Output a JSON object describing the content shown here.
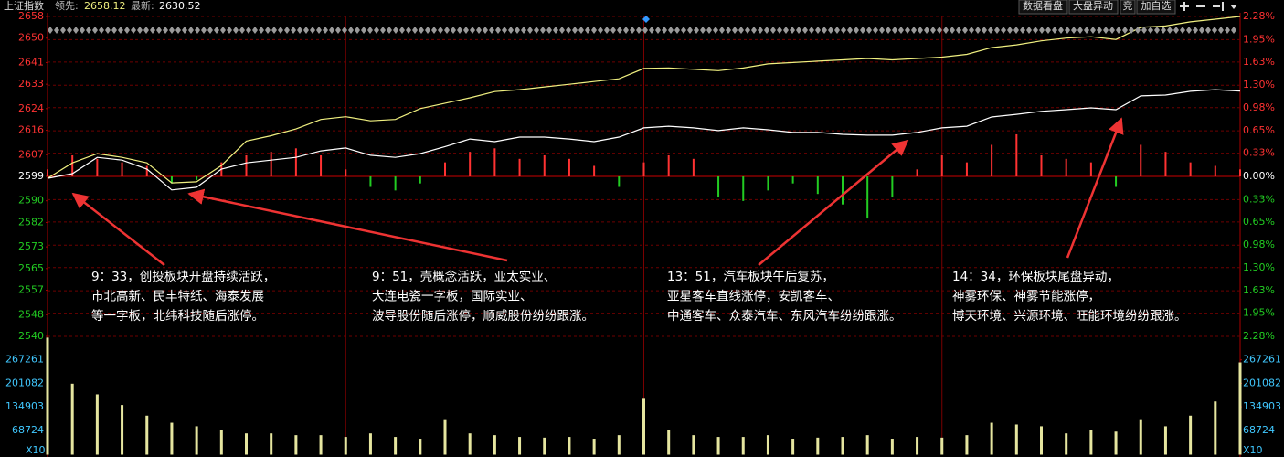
{
  "header": {
    "title": "上证指数",
    "lead_label": "领先:",
    "lead_value": "2658.12",
    "last_label": "最新:",
    "last_value": "2630.52"
  },
  "toolbar": {
    "buttons": [
      "数据看盘",
      "大盘异动",
      "竞",
      "加自选"
    ]
  },
  "annotations": [
    [
      "9：33，创投板块开盘持续活跃，",
      "市北高新、民丰特纸、海泰发展",
      "等一字板，北纬科技随后涨停。"
    ],
    [
      "9：51，壳概念活跃，亚太实业、",
      "大连电瓷一字板，国际实业、",
      "波导股份随后涨停，顺威股份纷纷跟涨。"
    ],
    [
      "13：51，汽车板块午后复苏，",
      "亚星客车直线涨停，安凯客车、",
      "中通客车、众泰汽车、东风汽车纷纷跟涨。"
    ],
    [
      "14：34，环保板块尾盘异动，",
      "神雾环保、神雾节能涨停，",
      "博天环境、兴源环境、旺能环境纷纷跟涨。"
    ]
  ],
  "chart_data": [
    {
      "type": "line",
      "x": [
        0,
        5,
        10,
        15,
        20,
        25,
        30,
        35,
        40,
        45,
        50,
        55,
        60,
        65,
        70,
        75,
        80,
        85,
        90,
        95,
        100,
        105,
        110,
        115,
        120,
        125,
        130,
        135,
        140,
        145,
        150,
        155,
        160,
        165,
        170,
        175,
        180,
        185,
        190,
        195,
        200,
        205,
        210,
        215,
        220,
        225,
        230,
        235,
        240
      ],
      "xlim": [
        0,
        240
      ],
      "ylim": [
        2540,
        2658
      ],
      "yticks": [
        2658,
        2650,
        2641,
        2633,
        2624,
        2616,
        2607,
        2599,
        2590,
        2582,
        2573,
        2565,
        2557,
        2548,
        2540
      ],
      "y2lim": [
        -2.28,
        2.28
      ],
      "y2ticks": [
        {
          "value": 2.28,
          "label": "2.28%"
        },
        {
          "value": 1.95,
          "label": "1.95%"
        },
        {
          "value": 1.63,
          "label": "1.63%"
        },
        {
          "value": 1.3,
          "label": "1.30%"
        },
        {
          "value": 0.98,
          "label": "0.98%"
        },
        {
          "value": 0.65,
          "label": "0.65%"
        },
        {
          "value": 0.33,
          "label": "0.33%"
        },
        {
          "value": 0,
          "label": "0.00%"
        },
        {
          "value": -0.33,
          "label": "0.33%"
        },
        {
          "value": -0.65,
          "label": "0.65%"
        },
        {
          "value": -0.98,
          "label": "0.98%"
        },
        {
          "value": -1.3,
          "label": "1.30%"
        },
        {
          "value": -1.63,
          "label": "1.63%"
        },
        {
          "value": -1.95,
          "label": "1.95%"
        },
        {
          "value": -2.28,
          "label": "2.28%"
        }
      ],
      "grid": true,
      "up_color": "#ff3232",
      "down_color": "#22cc22",
      "series": [
        {
          "type": "bar",
          "axis": "y2",
          "values": [
            0.1,
            0.3,
            0.25,
            0.2,
            0.15,
            -0.1,
            -0.05,
            0.2,
            0.3,
            0.35,
            0.4,
            0.3,
            0.1,
            -0.15,
            -0.2,
            -0.1,
            0.2,
            0.35,
            0.4,
            0.25,
            0.3,
            0.25,
            0.15,
            -0.15,
            0.2,
            0.3,
            0.25,
            -0.3,
            -0.35,
            -0.2,
            -0.1,
            -0.25,
            -0.4,
            -0.6,
            -0.3,
            0.1,
            0.3,
            0.2,
            0.45,
            0.6,
            0.3,
            0.25,
            0.2,
            -0.15,
            0.45,
            0.35,
            0.2,
            0.15,
            0.1
          ]
        },
        {
          "type": "line",
          "color": "#f0f080",
          "values": [
            2598.3,
            2604,
            2607.4,
            2606,
            2604,
            2596.6,
            2597,
            2603,
            2612,
            2614,
            2616.5,
            2620,
            2621,
            2619.5,
            2620,
            2624,
            2626,
            2628,
            2630.3,
            2631,
            2632,
            2633,
            2634,
            2635,
            2638.8,
            2639,
            2638.5,
            2638,
            2639,
            2640.5,
            2641,
            2641.5,
            2642,
            2642.5,
            2642,
            2642.5,
            2643,
            2644,
            2646.5,
            2647.5,
            2649,
            2650,
            2650.5,
            2649.5,
            2654,
            2654.5,
            2656,
            2657,
            2658
          ]
        },
        {
          "type": "line",
          "color": "#ffffff",
          "values": [
            2598.3,
            2600,
            2606,
            2605,
            2601.7,
            2594,
            2595,
            2601.7,
            2604,
            2605,
            2606,
            2608.4,
            2609.5,
            2606.8,
            2606,
            2607.4,
            2610,
            2612.8,
            2611.8,
            2613.5,
            2613.5,
            2612.8,
            2611.8,
            2613.5,
            2616.9,
            2617.5,
            2616.9,
            2615.9,
            2616.9,
            2616.2,
            2615.2,
            2615.2,
            2614.5,
            2614.2,
            2614.2,
            2615.2,
            2616.9,
            2617.5,
            2620.9,
            2621.9,
            2623,
            2623.6,
            2624.3,
            2623.6,
            2628.7,
            2629,
            2630.4,
            2631,
            2630.5
          ]
        }
      ]
    },
    {
      "type": "bar",
      "values": [
        330000,
        200000,
        170000,
        140000,
        110000,
        90000,
        80000,
        70000,
        60000,
        60000,
        55000,
        55000,
        50000,
        60000,
        50000,
        45000,
        100000,
        60000,
        55000,
        50000,
        48000,
        50000,
        45000,
        55000,
        160000,
        70000,
        55000,
        50000,
        50000,
        55000,
        45000,
        48000,
        50000,
        55000,
        45000,
        50000,
        48000,
        55000,
        90000,
        85000,
        80000,
        60000,
        70000,
        65000,
        100000,
        80000,
        110000,
        150000,
        260000
      ],
      "color": "#e6e6a0",
      "ylim": [
        0,
        333440
      ],
      "yticks": [
        267261,
        201082,
        134903,
        68724
      ],
      "unit_label": "X10"
    }
  ]
}
